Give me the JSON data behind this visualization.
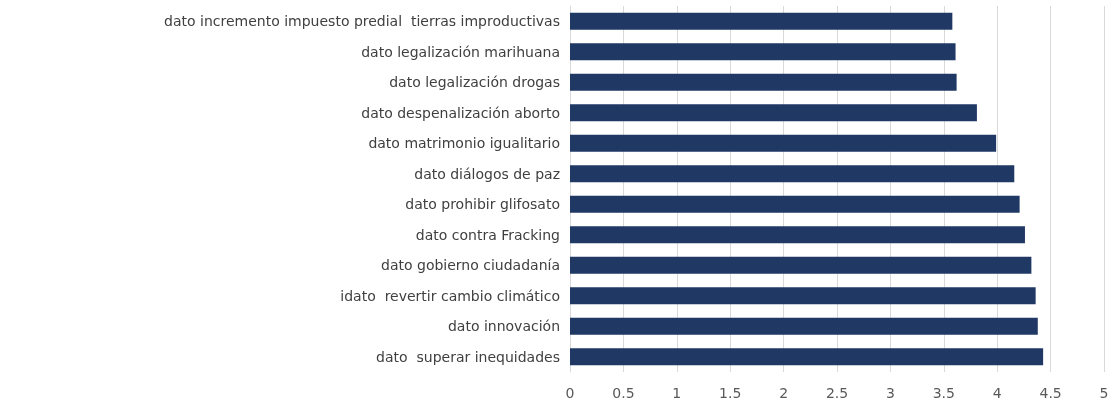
{
  "chart_data": {
    "type": "bar",
    "orientation": "horizontal",
    "categories": [
      "dato incremento impuesto predial  tierras improductivas",
      "dato legalización marihuana",
      "dato legalización drogas",
      "dato despenalización aborto",
      "dato matrimonio igualitario",
      "dato diálogos de paz",
      "dato prohibir glifosato",
      "dato contra Fracking",
      "dato gobierno ciudadanía",
      "idato  revertir cambio climático",
      "dato innovación",
      "dato  superar inequidades"
    ],
    "values": [
      3.58,
      3.61,
      3.62,
      3.81,
      3.99,
      4.16,
      4.21,
      4.26,
      4.32,
      4.36,
      4.38,
      4.43
    ],
    "color": "#203864",
    "xlim": [
      0,
      5
    ],
    "xticks": [
      0,
      0.5,
      1,
      1.5,
      2,
      2.5,
      3,
      3.5,
      4,
      4.5,
      5
    ],
    "grid": "x"
  }
}
